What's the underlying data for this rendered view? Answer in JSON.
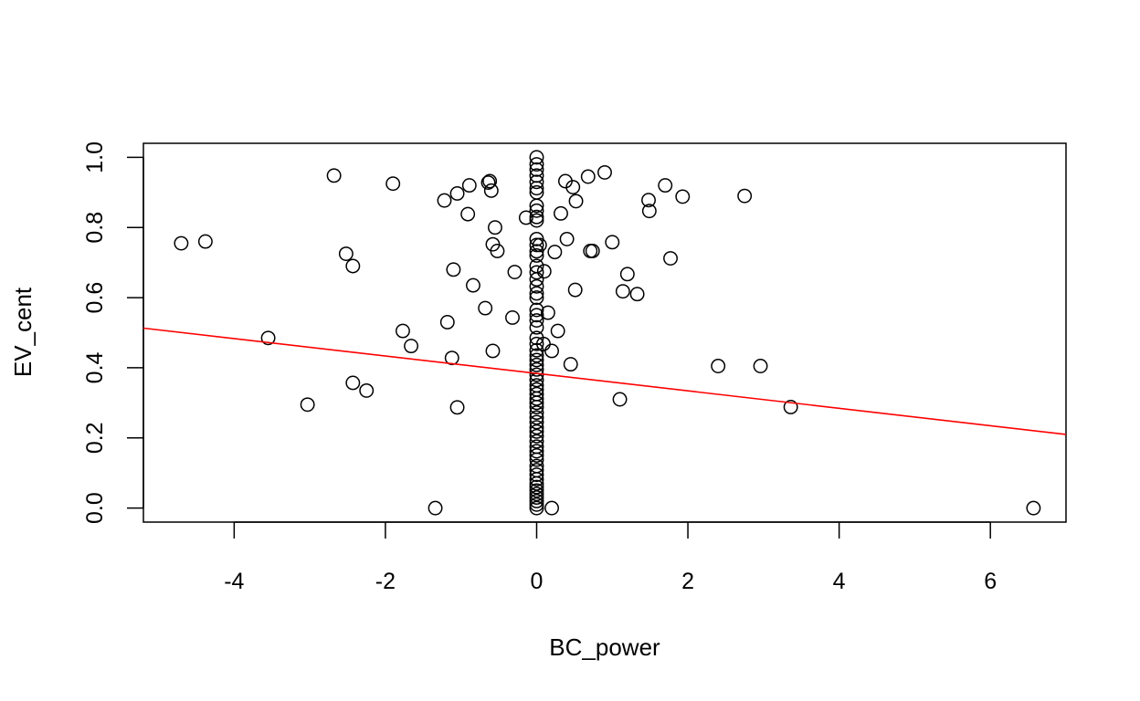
{
  "chart_data": {
    "type": "scatter",
    "title": "",
    "xlabel": "BC_power",
    "ylabel": "EV_cent",
    "xlim": [
      -5.2,
      7.0
    ],
    "ylim": [
      -0.04,
      1.04
    ],
    "xticks": [
      -4,
      -2,
      0,
      2,
      4,
      6
    ],
    "yticks": [
      0.0,
      0.2,
      0.4,
      0.6,
      0.8,
      1.0
    ],
    "xtick_labels": [
      "-4",
      "-2",
      "0",
      "2",
      "4",
      "6"
    ],
    "ytick_labels": [
      "0.0",
      "0.2",
      "0.4",
      "0.6",
      "0.8",
      "1.0"
    ],
    "grid": false,
    "legend": "none",
    "point_style": "open-circle",
    "fit_line": {
      "color": "#ff0000",
      "x": [
        -5.2,
        7.0
      ],
      "y": [
        0.513,
        0.21
      ]
    },
    "points": [
      [
        -4.7,
        0.755
      ],
      [
        -4.38,
        0.76
      ],
      [
        -3.55,
        0.485
      ],
      [
        -3.03,
        0.295
      ],
      [
        -2.68,
        0.948
      ],
      [
        -2.52,
        0.725
      ],
      [
        -2.43,
        0.69
      ],
      [
        -2.43,
        0.357
      ],
      [
        -2.25,
        0.335
      ],
      [
        -1.9,
        0.925
      ],
      [
        -1.77,
        0.505
      ],
      [
        -1.66,
        0.462
      ],
      [
        -1.34,
        0.0
      ],
      [
        -1.22,
        0.877
      ],
      [
        -1.18,
        0.53
      ],
      [
        -1.12,
        0.428
      ],
      [
        -1.1,
        0.68
      ],
      [
        -1.05,
        0.897
      ],
      [
        -1.05,
        0.287
      ],
      [
        -0.91,
        0.838
      ],
      [
        -0.89,
        0.92
      ],
      [
        -0.84,
        0.635
      ],
      [
        -0.68,
        0.57
      ],
      [
        -0.64,
        0.928
      ],
      [
        -0.62,
        0.932
      ],
      [
        -0.6,
        0.905
      ],
      [
        -0.58,
        0.752
      ],
      [
        -0.58,
        0.448
      ],
      [
        -0.55,
        0.8
      ],
      [
        -0.52,
        0.733
      ],
      [
        -0.32,
        0.543
      ],
      [
        -0.29,
        0.673
      ],
      [
        -0.14,
        0.828
      ],
      [
        0.1,
        0.675
      ],
      [
        0.15,
        0.557
      ],
      [
        0.2,
        0.0
      ],
      [
        0.2,
        0.448
      ],
      [
        0.24,
        0.73
      ],
      [
        0.28,
        0.505
      ],
      [
        0.32,
        0.84
      ],
      [
        0.38,
        0.932
      ],
      [
        0.4,
        0.767
      ],
      [
        0.45,
        0.41
      ],
      [
        0.48,
        0.915
      ],
      [
        0.51,
        0.622
      ],
      [
        0.52,
        0.875
      ],
      [
        0.68,
        0.945
      ],
      [
        0.71,
        0.733
      ],
      [
        0.74,
        0.733
      ],
      [
        0.9,
        0.957
      ],
      [
        1.0,
        0.758
      ],
      [
        1.1,
        0.31
      ],
      [
        1.14,
        0.618
      ],
      [
        1.2,
        0.667
      ],
      [
        1.33,
        0.61
      ],
      [
        1.48,
        0.878
      ],
      [
        1.49,
        0.847
      ],
      [
        1.7,
        0.92
      ],
      [
        1.77,
        0.712
      ],
      [
        1.93,
        0.888
      ],
      [
        2.4,
        0.405
      ],
      [
        2.75,
        0.89
      ],
      [
        2.96,
        0.405
      ],
      [
        3.36,
        0.288
      ],
      [
        6.57,
        0.0
      ],
      [
        0.04,
        0.75
      ],
      [
        0.09,
        0.468
      ],
      [
        0,
        1.0
      ],
      [
        0,
        0.98
      ],
      [
        0,
        0.965
      ],
      [
        0,
        0.948
      ],
      [
        0,
        0.93
      ],
      [
        0,
        0.912
      ],
      [
        0,
        0.9
      ],
      [
        0,
        0.862
      ],
      [
        0,
        0.848
      ],
      [
        0,
        0.83
      ],
      [
        0,
        0.82
      ],
      [
        0,
        0.767
      ],
      [
        0,
        0.75
      ],
      [
        0,
        0.732
      ],
      [
        0,
        0.72
      ],
      [
        0,
        0.69
      ],
      [
        0,
        0.672
      ],
      [
        0,
        0.652
      ],
      [
        0,
        0.632
      ],
      [
        0,
        0.612
      ],
      [
        0,
        0.6
      ],
      [
        0,
        0.565
      ],
      [
        0,
        0.55
      ],
      [
        0,
        0.535
      ],
      [
        0,
        0.515
      ],
      [
        0,
        0.485
      ],
      [
        0,
        0.468
      ],
      [
        0,
        0.45
      ],
      [
        0,
        0.435
      ],
      [
        0,
        0.422
      ],
      [
        0,
        0.408
      ],
      [
        0,
        0.395
      ],
      [
        0,
        0.38
      ],
      [
        0,
        0.365
      ],
      [
        0,
        0.35
      ],
      [
        0,
        0.338
      ],
      [
        0,
        0.325
      ],
      [
        0,
        0.312
      ],
      [
        0,
        0.3
      ],
      [
        0,
        0.288
      ],
      [
        0,
        0.272
      ],
      [
        0,
        0.258
      ],
      [
        0,
        0.245
      ],
      [
        0,
        0.23
      ],
      [
        0,
        0.218
      ],
      [
        0,
        0.205
      ],
      [
        0,
        0.19
      ],
      [
        0,
        0.175
      ],
      [
        0,
        0.162
      ],
      [
        0,
        0.15
      ],
      [
        0,
        0.138
      ],
      [
        0,
        0.12
      ],
      [
        0,
        0.108
      ],
      [
        0,
        0.095
      ],
      [
        0,
        0.082
      ],
      [
        0,
        0.07
      ],
      [
        0,
        0.06
      ],
      [
        0,
        0.05
      ],
      [
        0,
        0.04
      ],
      [
        0,
        0.03
      ],
      [
        0,
        0.02
      ],
      [
        0,
        0.01
      ],
      [
        0,
        0.0
      ]
    ]
  }
}
